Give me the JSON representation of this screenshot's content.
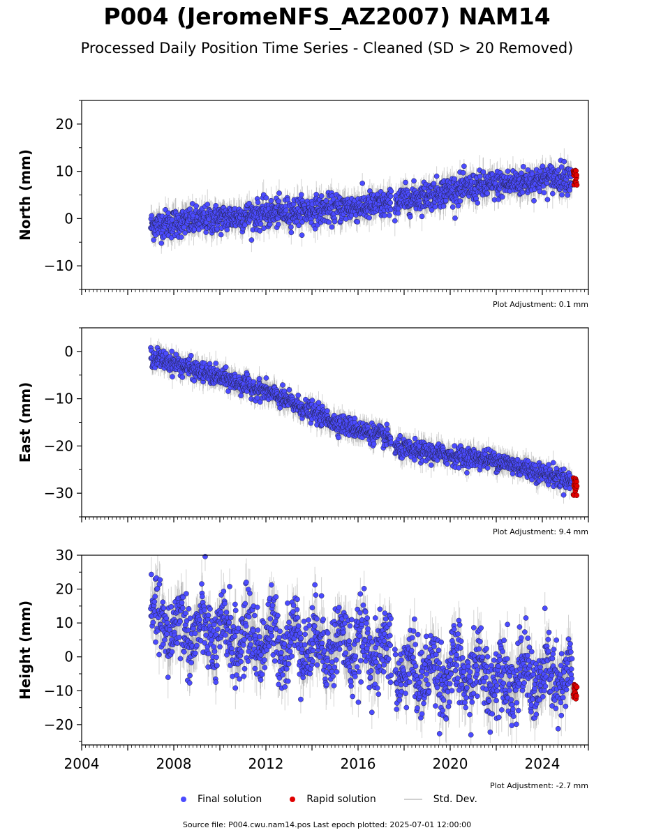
{
  "title": "P004 (JeromeNFS_AZ2007) NAM14",
  "subtitle": "Processed Daily Position Time Series - Cleaned (SD > 20 Removed)",
  "legend": {
    "final": "Final solution",
    "rapid": "Rapid solution",
    "std": "Std. Dev."
  },
  "footer": "Source file: P004.cwu.nam14.pos  Last epoch plotted: 2025-07-01 12:00:00",
  "colors": {
    "final": "#4b4bff",
    "rapid": "#e00000",
    "std": "#c8c8c8"
  },
  "chart_data": [
    {
      "type": "scatter",
      "ylabel": "North (mm)",
      "xlim": [
        2004,
        2026
      ],
      "ylim": [
        -15,
        25
      ],
      "yticks": [
        -10,
        0,
        10,
        20
      ],
      "adjustment": "Plot Adjustment: 0.1 mm",
      "show_xtick_labels": false,
      "final": {
        "x_start": 2007.0,
        "x_end": 2025.3,
        "gap": [
          2017.45,
          2017.6
        ],
        "trend": [
          [
            2007.0,
            -1.5
          ],
          [
            2012.0,
            1.0
          ],
          [
            2017.4,
            3.0
          ],
          [
            2017.6,
            3.5
          ],
          [
            2020.0,
            6.0
          ],
          [
            2025.3,
            9.0
          ]
        ],
        "scatter_sd": 1.5,
        "errbar": 2.2
      },
      "rapid": {
        "x_start": 2025.35,
        "x_end": 2025.5,
        "center": 8.8,
        "spread": 2.2
      }
    },
    {
      "type": "scatter",
      "ylabel": "East (mm)",
      "xlim": [
        2004,
        2026
      ],
      "ylim": [
        -35,
        5
      ],
      "yticks": [
        -30,
        -20,
        -10,
        0
      ],
      "adjustment": "Plot Adjustment: 9.4 mm",
      "show_xtick_labels": false,
      "final": {
        "x_start": 2007.0,
        "x_end": 2025.3,
        "gap": [
          2017.45,
          2017.6
        ],
        "trend": [
          [
            2007.0,
            -1.0
          ],
          [
            2009.0,
            -4.0
          ],
          [
            2012.0,
            -8.5
          ],
          [
            2015.0,
            -15.0
          ],
          [
            2017.4,
            -18.5
          ],
          [
            2017.6,
            -20.5
          ],
          [
            2020.0,
            -22.0
          ],
          [
            2022.0,
            -23.0
          ],
          [
            2025.3,
            -27.5
          ]
        ],
        "scatter_sd": 1.0,
        "errbar": 1.8
      },
      "rapid": {
        "x_start": 2025.35,
        "x_end": 2025.5,
        "center": -28.5,
        "spread": 2.5
      }
    },
    {
      "type": "scatter",
      "ylabel": "Height (mm)",
      "xlim": [
        2004,
        2026
      ],
      "ylim": [
        -26,
        30
      ],
      "yticks": [
        -20,
        -10,
        0,
        10,
        20,
        30
      ],
      "adjustment": "Plot Adjustment: -2.7 mm",
      "show_xtick_labels": true,
      "xticks": [
        2004,
        2008,
        2012,
        2016,
        2020,
        2024
      ],
      "final": {
        "x_start": 2007.0,
        "x_end": 2025.3,
        "gap": [
          2017.45,
          2017.6
        ],
        "trend": [
          [
            2007.0,
            10.0
          ],
          [
            2010.0,
            6.0
          ],
          [
            2013.0,
            5.0
          ],
          [
            2016.0,
            3.0
          ],
          [
            2017.4,
            1.0
          ],
          [
            2017.6,
            -4.0
          ],
          [
            2021.0,
            -5.0
          ],
          [
            2025.3,
            -7.0
          ]
        ],
        "scatter_sd": 5.5,
        "errbar": 5.0,
        "seasonal_amp": 4.0
      },
      "rapid": {
        "x_start": 2025.35,
        "x_end": 2025.5,
        "center": -10.0,
        "spread": 3.0
      }
    }
  ]
}
